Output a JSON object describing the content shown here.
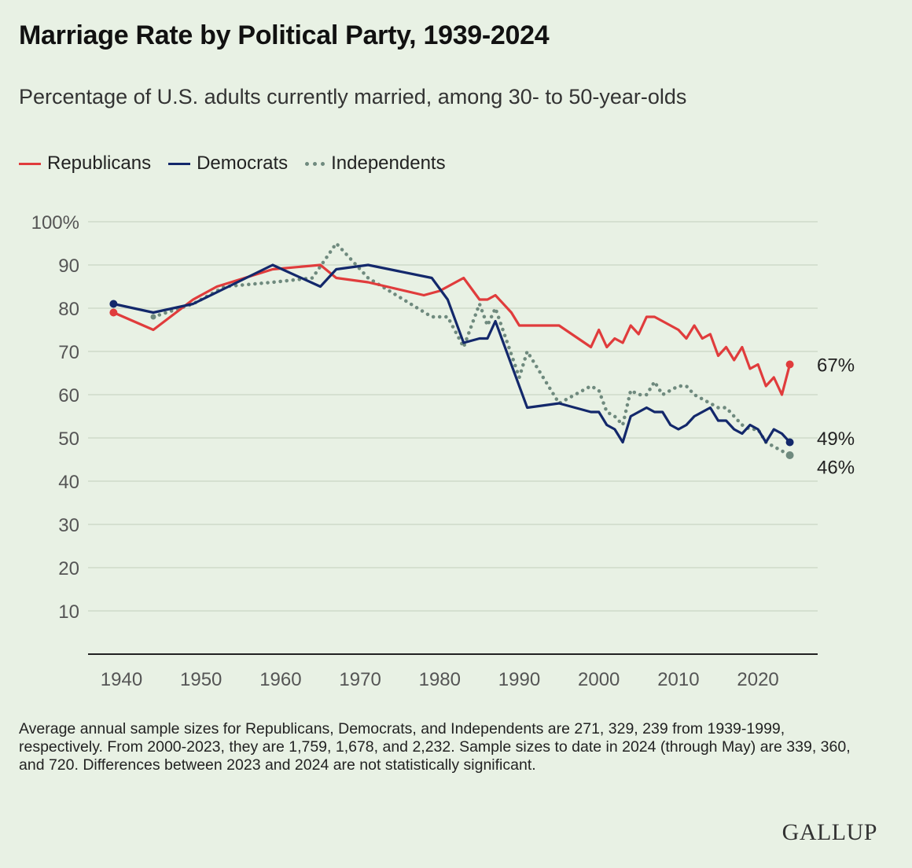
{
  "colors": {
    "republicans": "#e03c3c",
    "democrats": "#13286b",
    "independents": "#6f8a7e",
    "grid": "#c9d6c3",
    "axis": "#222222",
    "tick_text": "#555555",
    "background": "#e8f1e4"
  },
  "brand": {
    "logo_text": "GALLUP"
  },
  "footnote": "Average annual sample sizes for Republicans, Democrats, and Independents are 271, 329, 239 from 1939-1999, respectively. From 2000-2023, they are 1,759, 1,678, and 2,232. Sample sizes to date in 2024 (through May) are 339, 360, and 720. Differences between 2023 and 2024 are not statistically significant.",
  "chart_data": {
    "type": "line",
    "title": "Marriage Rate by Political Party, 1939-2024",
    "subtitle": "Percentage of U.S. adults currently married, among 30- to 50-year-olds",
    "xlabel": "",
    "ylabel": "",
    "xlim": [
      1939,
      2024
    ],
    "ylim": [
      0,
      100
    ],
    "x_ticks": [
      1940,
      1950,
      1960,
      1970,
      1980,
      1990,
      2000,
      2010,
      2020
    ],
    "y_ticks": [
      10,
      20,
      30,
      40,
      50,
      60,
      70,
      80,
      90,
      100
    ],
    "y_tick_labels": [
      "10",
      "20",
      "30",
      "40",
      "50",
      "60",
      "70",
      "80",
      "90",
      "100%"
    ],
    "grid": true,
    "legend_position": "top-left",
    "series": [
      {
        "name": "Republicans",
        "key": "republicans",
        "style": "solid",
        "end_label": "67%",
        "x": [
          1939,
          1944,
          1949,
          1952,
          1959,
          1965,
          1967,
          1971,
          1978,
          1980,
          1983,
          1985,
          1986,
          1987,
          1989,
          1990,
          1995,
          1999,
          2000,
          2001,
          2002,
          2003,
          2004,
          2005,
          2006,
          2007,
          2008,
          2009,
          2010,
          2011,
          2012,
          2013,
          2014,
          2015,
          2016,
          2017,
          2018,
          2019,
          2020,
          2021,
          2022,
          2023,
          2024
        ],
        "y": [
          79,
          75,
          82,
          85,
          89,
          90,
          87,
          86,
          83,
          84,
          87,
          82,
          82,
          83,
          79,
          76,
          76,
          71,
          75,
          71,
          73,
          72,
          76,
          74,
          78,
          78,
          77,
          76,
          75,
          73,
          76,
          73,
          74,
          69,
          71,
          68,
          71,
          66,
          67,
          62,
          64,
          60,
          67
        ]
      },
      {
        "name": "Democrats",
        "key": "democrats",
        "style": "solid",
        "end_label": "49%",
        "x": [
          1939,
          1944,
          1949,
          1959,
          1965,
          1967,
          1971,
          1979,
          1981,
          1983,
          1985,
          1986,
          1987,
          1991,
          1995,
          1999,
          2000,
          2001,
          2002,
          2003,
          2004,
          2005,
          2006,
          2007,
          2008,
          2009,
          2010,
          2011,
          2012,
          2013,
          2014,
          2015,
          2016,
          2017,
          2018,
          2019,
          2020,
          2021,
          2022,
          2023,
          2024
        ],
        "y": [
          81,
          79,
          81,
          90,
          85,
          89,
          90,
          87,
          82,
          72,
          73,
          73,
          77,
          57,
          58,
          56,
          56,
          53,
          52,
          49,
          55,
          56,
          57,
          56,
          56,
          53,
          52,
          53,
          55,
          56,
          57,
          54,
          54,
          52,
          51,
          53,
          52,
          49,
          52,
          51,
          49
        ]
      },
      {
        "name": "Independents",
        "key": "independents",
        "style": "dotted",
        "end_label": "46%",
        "x": [
          1944,
          1949,
          1953,
          1959,
          1964,
          1967,
          1971,
          1979,
          1981,
          1983,
          1985,
          1986,
          1987,
          1990,
          1991,
          1995,
          1999,
          2000,
          2001,
          2002,
          2003,
          2004,
          2005,
          2006,
          2007,
          2008,
          2009,
          2010,
          2011,
          2012,
          2013,
          2014,
          2015,
          2016,
          2017,
          2018,
          2019,
          2020,
          2021,
          2022,
          2023,
          2024
        ],
        "y": [
          78,
          81,
          85,
          86,
          87,
          95,
          87,
          78,
          78,
          71,
          81,
          76,
          80,
          64,
          70,
          58,
          62,
          61,
          56,
          55,
          53,
          61,
          60,
          60,
          63,
          60,
          61,
          62,
          62,
          60,
          59,
          58,
          57,
          57,
          55,
          53,
          52,
          52,
          49,
          48,
          47,
          46
        ]
      }
    ]
  }
}
